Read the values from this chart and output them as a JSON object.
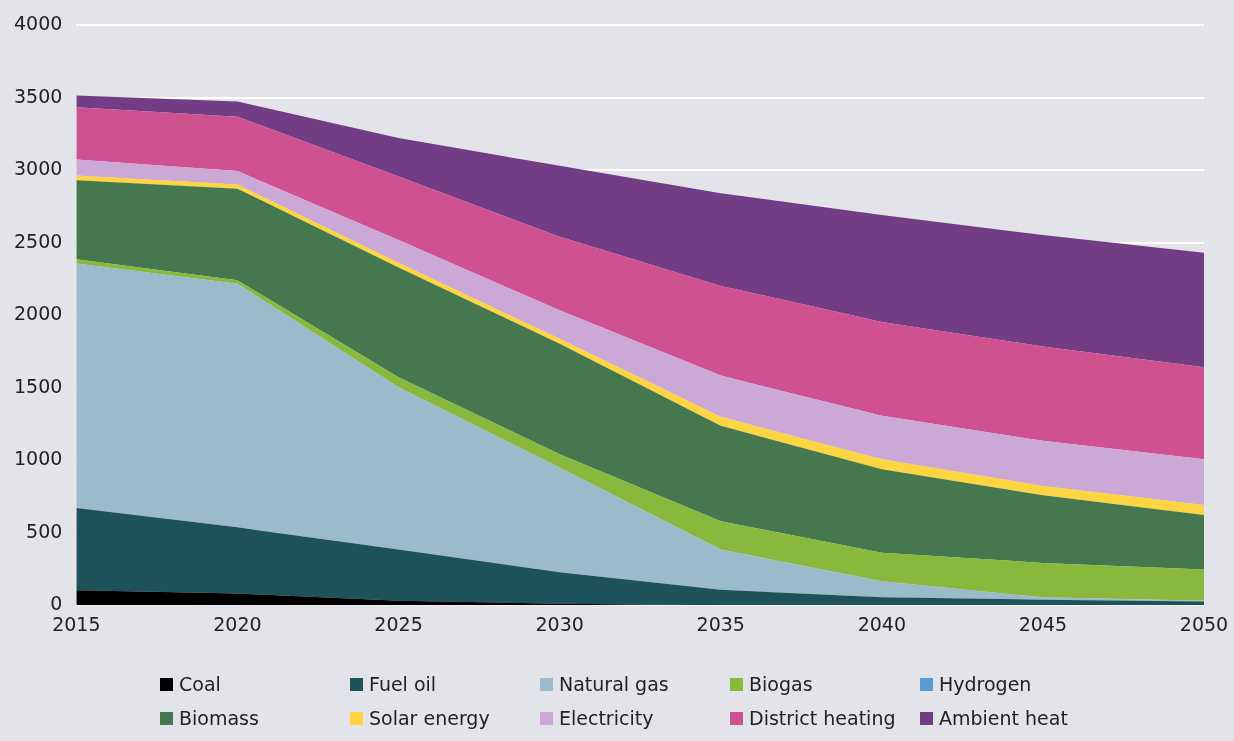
{
  "chart_data": {
    "type": "area",
    "stacked": true,
    "x": [
      2015,
      2020,
      2025,
      2030,
      2035,
      2040,
      2045,
      2050
    ],
    "xlim": [
      2015,
      2050
    ],
    "xticks": [
      2015,
      2020,
      2025,
      2030,
      2035,
      2040,
      2045,
      2050
    ],
    "ylim": [
      0,
      4000
    ],
    "yticks": [
      0,
      500,
      1000,
      1500,
      2000,
      2500,
      3000,
      3500,
      4000
    ],
    "grid": "y",
    "legend": "bottom",
    "series": [
      {
        "name": "Coal",
        "color": "#000000",
        "values": [
          104,
          80,
          31,
          10,
          0,
          0,
          0,
          0
        ]
      },
      {
        "name": "Fuel oil",
        "color": "#1d525b",
        "values": [
          566,
          457,
          353,
          217,
          107,
          54,
          38,
          26
        ]
      },
      {
        "name": "Natural gas",
        "color": "#9bbacb",
        "values": [
          1688,
          1681,
          1120,
          723,
          277,
          111,
          16,
          5
        ]
      },
      {
        "name": "Biogas",
        "color": "#88b93d",
        "values": [
          29,
          23,
          69,
          92,
          196,
          196,
          238,
          215
        ]
      },
      {
        "name": "Hydrogen",
        "color": "#5b9bd5",
        "values": [
          null,
          null,
          null,
          null,
          null,
          null,
          null,
          null
        ]
      },
      {
        "name": "Biomass",
        "color": "#46784f",
        "values": [
          545,
          632,
          757,
          762,
          658,
          577,
          466,
          376
        ]
      },
      {
        "name": "Solar energy",
        "color": "#fdd540",
        "values": [
          33,
          29,
          32,
          34,
          62,
          69,
          65,
          69
        ]
      },
      {
        "name": "Electricity",
        "color": "#cba8d6",
        "values": [
          110,
          93,
          157,
          196,
          284,
          300,
          311,
          316
        ]
      },
      {
        "name": "District heating",
        "color": "#d05190",
        "values": [
          361,
          375,
          439,
          508,
          619,
          647,
          651,
          635
        ]
      },
      {
        "name": "Ambient heat",
        "color": "#723d85",
        "values": [
          81,
          105,
          265,
          489,
          639,
          738,
          769,
          790
        ]
      }
    ]
  }
}
